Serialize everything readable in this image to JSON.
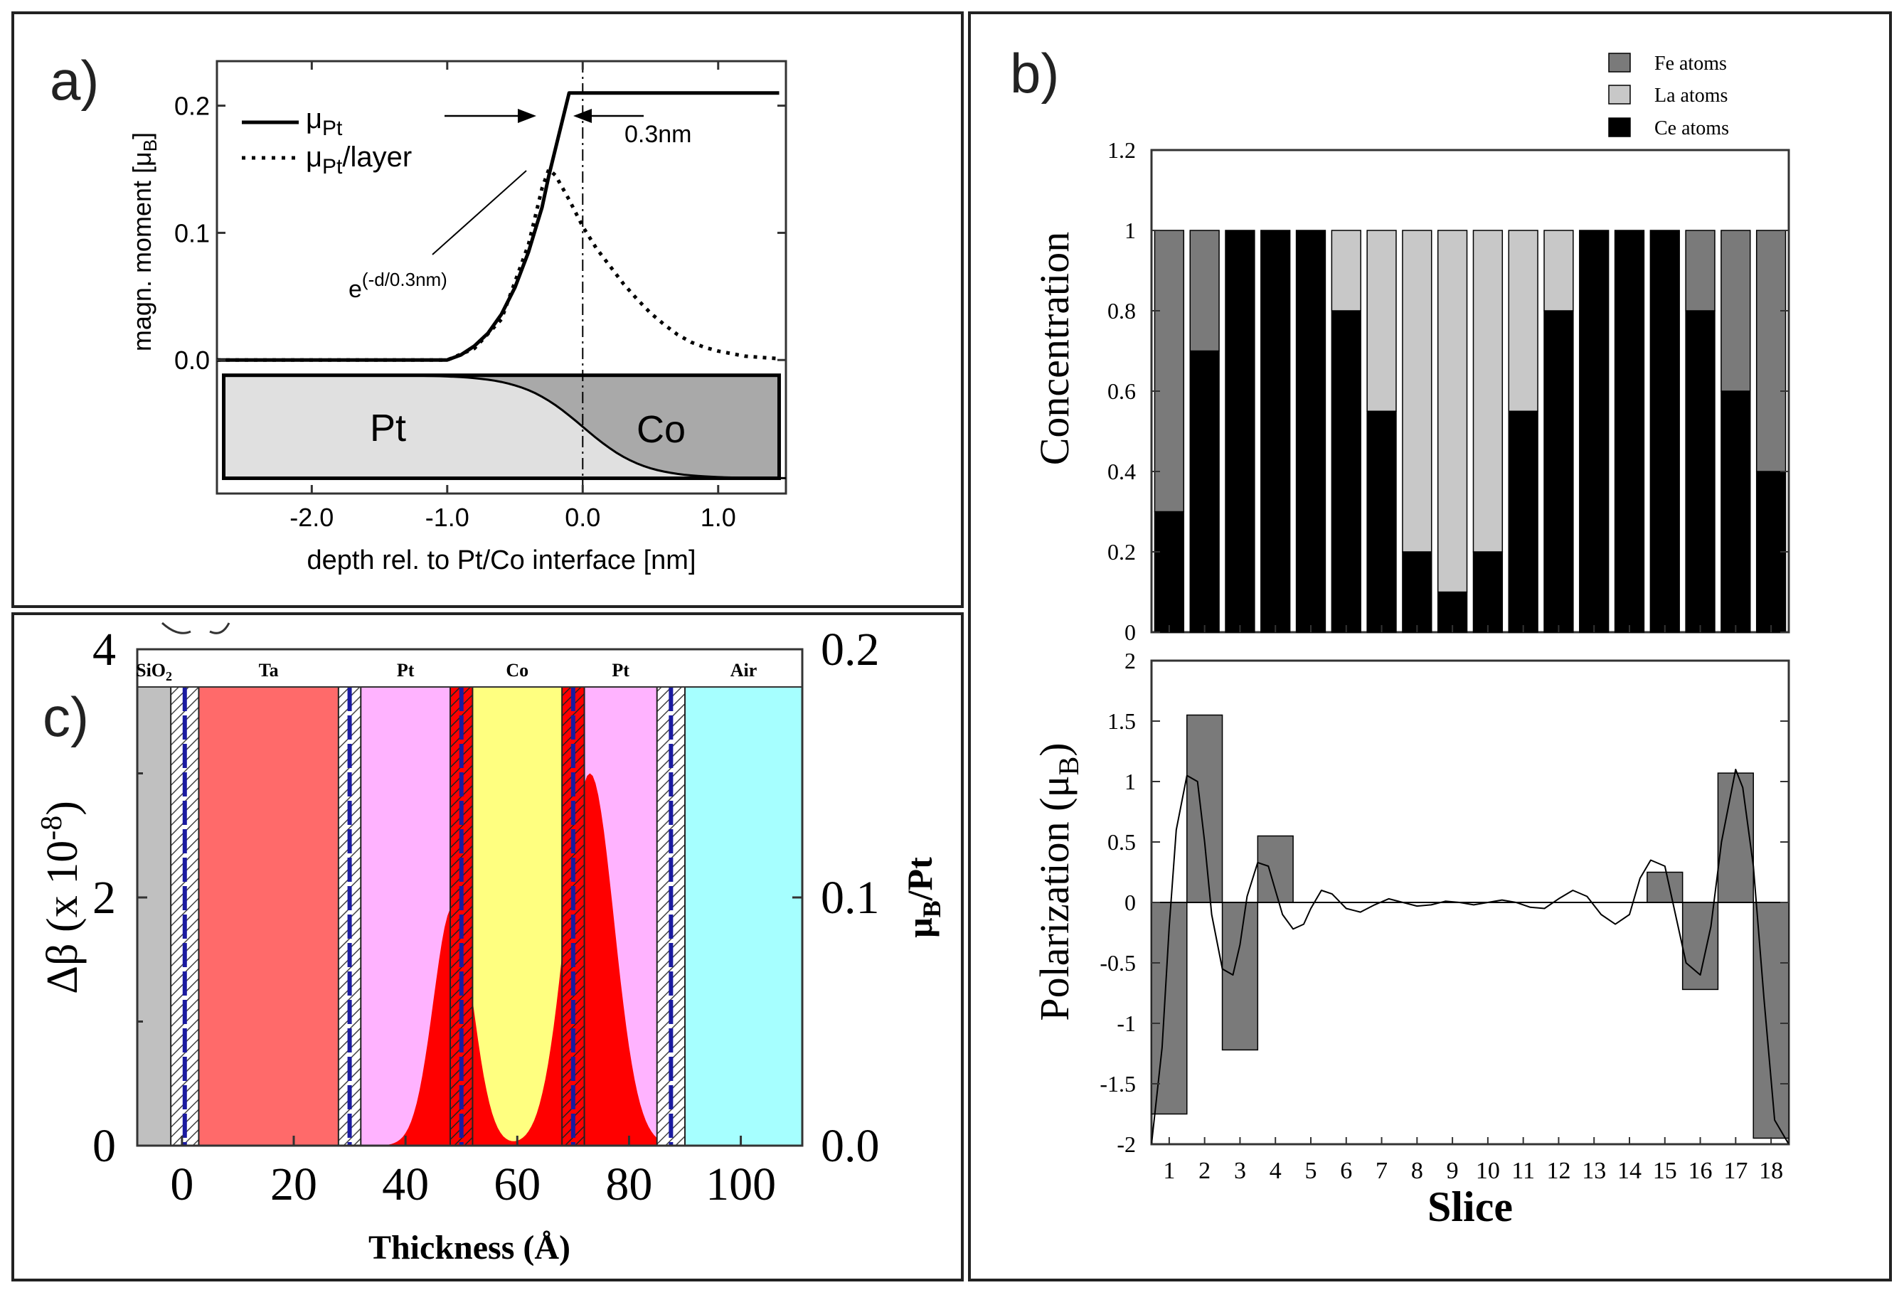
{
  "panels": {
    "a": {
      "label": "a)"
    },
    "b": {
      "label": "b)"
    },
    "c": {
      "label": "c)"
    }
  },
  "colors": {
    "fe": "#7a7a7a",
    "la": "#c8c8c8",
    "ce": "#000000",
    "pt_region": "#e0e0e0",
    "co_region": "#a9a9a9",
    "sio2": "#c0c0c0",
    "ta": "#ff6a6a",
    "pt": "#ffb3ff",
    "co": "#ffff80",
    "air": "#a6ffff",
    "dbeta_fill": "#ff0000",
    "hatch": "#1a1aa0"
  },
  "chart_data": [
    {
      "id": "a",
      "type": "line",
      "xlabel": "depth rel. to Pt/Co interface [nm]",
      "ylabel": "magn. moment [μB]",
      "ylabel_main": "magn. moment [μ",
      "ylabel_sub": "B",
      "ylabel_end": "]",
      "xlim": [
        -2.7,
        1.5
      ],
      "ylim": [
        -0.105,
        0.235
      ],
      "xticks": [
        "-2.0",
        "-1.0",
        "0.0",
        "1.0"
      ],
      "yticks": [
        "0.0",
        "0.1",
        "0.2"
      ],
      "legend": [
        {
          "main": "μ",
          "sub": "Pt",
          "rest": "",
          "style": "solid"
        },
        {
          "main": "μ",
          "sub": "Pt",
          "rest": "/layer",
          "style": "dotted"
        }
      ],
      "annotation_width": "0.3nm",
      "annotation_exp_base": "e",
      "annotation_exp_power": "(-d/0.3nm)",
      "series": [
        {
          "name": "μPt",
          "x": [
            -2.7,
            -1.2,
            -1.0,
            -0.9,
            -0.8,
            -0.7,
            -0.6,
            -0.5,
            -0.4,
            -0.3,
            -0.25,
            -0.1,
            0.2,
            0.5,
            1.0,
            1.45
          ],
          "values": [
            0.0,
            0.0,
            0.0,
            0.004,
            0.011,
            0.021,
            0.036,
            0.057,
            0.085,
            0.12,
            0.145,
            0.21,
            0.21,
            0.21,
            0.21,
            0.21
          ]
        },
        {
          "name": "μPt/layer",
          "x": [
            -2.7,
            -1.2,
            -1.0,
            -0.8,
            -0.6,
            -0.4,
            -0.3,
            -0.25,
            -0.2,
            -0.1,
            0.0,
            0.1,
            0.2,
            0.3,
            0.4,
            0.5,
            0.6,
            0.7,
            0.8,
            0.9,
            1.0,
            1.2,
            1.45
          ],
          "values": [
            0.0,
            0.0,
            0.0,
            0.009,
            0.032,
            0.091,
            0.135,
            0.15,
            0.145,
            0.126,
            0.105,
            0.088,
            0.074,
            0.06,
            0.048,
            0.037,
            0.028,
            0.02,
            0.014,
            0.01,
            0.007,
            0.003,
            0.001
          ]
        }
      ],
      "regions": [
        "Pt",
        "Co"
      ]
    },
    {
      "id": "b_top",
      "type": "bar",
      "stacked": true,
      "ylabel": "Concentration",
      "ylim": [
        0,
        1.2
      ],
      "yticks": [
        "0",
        "0.2",
        "0.4",
        "0.6",
        "0.8",
        "1",
        "1.2"
      ],
      "categories": [
        "1",
        "2",
        "3",
        "4",
        "5",
        "6",
        "7",
        "8",
        "9",
        "10",
        "11",
        "12",
        "13",
        "14",
        "15",
        "16",
        "17",
        "18"
      ],
      "legend": [
        "Fe atoms",
        "La atoms",
        "Ce atoms"
      ],
      "series": [
        {
          "name": "Ce atoms",
          "values": [
            0.3,
            0.7,
            1,
            1,
            1,
            0.8,
            0.55,
            0.2,
            0.1,
            0.2,
            0.55,
            0.8,
            1,
            1,
            1,
            0.8,
            0.6,
            0.4
          ]
        },
        {
          "name": "La atoms",
          "values": [
            0,
            0,
            0,
            0,
            0,
            0.2,
            0.45,
            0.8,
            0.9,
            0.8,
            0.45,
            0.2,
            0,
            0,
            0,
            0,
            0,
            0
          ]
        },
        {
          "name": "Fe atoms",
          "values": [
            0.7,
            0.3,
            0,
            0,
            0,
            0,
            0,
            0,
            0,
            0,
            0,
            0,
            0,
            0,
            0,
            0.2,
            0.4,
            0.6
          ]
        }
      ]
    },
    {
      "id": "b_bottom",
      "type": "bar",
      "ylabel": "Polarization (μB)",
      "ylabel_main": "Polarization (μ",
      "ylabel_sub": "B",
      "ylabel_end": ")",
      "xlabel": "Slice",
      "ylim": [
        -2,
        2
      ],
      "yticks": [
        "-2",
        "-1.5",
        "-1",
        "-0.5",
        "0",
        "0.5",
        "1",
        "1.5",
        "2"
      ],
      "categories": [
        "1",
        "2",
        "3",
        "4",
        "5",
        "6",
        "7",
        "8",
        "9",
        "10",
        "11",
        "12",
        "13",
        "14",
        "15",
        "16",
        "17",
        "18"
      ],
      "values": [
        -1.75,
        1.55,
        -1.22,
        0.55,
        0,
        0,
        0,
        0,
        0,
        0,
        0,
        0,
        0,
        0,
        0.25,
        -0.72,
        1.07,
        -1.95
      ],
      "curve": {
        "x": [
          0.5,
          0.8,
          1.0,
          1.2,
          1.5,
          1.8,
          2.0,
          2.2,
          2.5,
          2.8,
          3.0,
          3.2,
          3.5,
          3.8,
          4.0,
          4.2,
          4.5,
          4.8,
          5.0,
          5.3,
          5.6,
          6.0,
          6.4,
          6.8,
          7.2,
          7.6,
          8.0,
          8.4,
          8.8,
          9.2,
          9.6,
          10.0,
          10.4,
          10.8,
          11.2,
          11.6,
          12.0,
          12.4,
          12.8,
          13.2,
          13.6,
          14.0,
          14.3,
          14.6,
          15.0,
          15.3,
          15.6,
          16.0,
          16.3,
          16.6,
          17.0,
          17.2,
          17.5,
          17.8,
          18.1,
          18.5
        ],
        "values": [
          -2.0,
          -1.2,
          -0.2,
          0.6,
          1.05,
          1.0,
          0.5,
          -0.1,
          -0.55,
          -0.6,
          -0.35,
          0.05,
          0.33,
          0.3,
          0.1,
          -0.1,
          -0.22,
          -0.18,
          -0.05,
          0.1,
          0.07,
          -0.05,
          -0.08,
          -0.02,
          0.03,
          0.0,
          -0.03,
          -0.02,
          0.01,
          0.0,
          -0.02,
          0.0,
          0.02,
          0.0,
          -0.04,
          -0.05,
          0.03,
          0.1,
          0.05,
          -0.1,
          -0.18,
          -0.1,
          0.2,
          0.35,
          0.3,
          -0.1,
          -0.5,
          -0.6,
          -0.2,
          0.5,
          1.1,
          0.95,
          0.3,
          -0.8,
          -1.8,
          -2.0
        ]
      }
    },
    {
      "id": "c",
      "type": "area",
      "xlabel": "Thickness (Å)",
      "ylabel": "Δβ (x 10^-8)",
      "ylabel_main": "Δβ (x 10",
      "ylabel_sup": "-8",
      "ylabel_end": ")",
      "y2label": "μB/Pt",
      "y2label_main": "μ",
      "y2label_sub": "B",
      "y2label_end": "/Pt",
      "xlim": [
        -8,
        111
      ],
      "ylim": [
        0,
        4
      ],
      "y2lim": [
        0,
        0.2
      ],
      "xticks": [
        "0",
        "20",
        "40",
        "60",
        "80",
        "100"
      ],
      "yticks": [
        "0",
        "2",
        "4"
      ],
      "y2ticks": [
        "0.0",
        "0.1",
        "0.2"
      ],
      "layers": [
        {
          "name": "SiO2",
          "main": "SiO",
          "sub": "2",
          "from": -8,
          "to": -2
        },
        {
          "name": "Ta",
          "main": "Ta",
          "sub": "",
          "from": 3,
          "to": 28
        },
        {
          "name": "Pt",
          "main": "Pt",
          "sub": "",
          "from": 32,
          "to": 48
        },
        {
          "name": "Co",
          "main": "Co",
          "sub": "",
          "from": 52,
          "to": 68
        },
        {
          "name": "Pt",
          "main": "Pt",
          "sub": "",
          "from": 72,
          "to": 85
        },
        {
          "name": "Air",
          "main": "Air",
          "sub": "",
          "from": 90,
          "to": 111
        }
      ],
      "interfaces": [
        {
          "from": -2,
          "to": 3
        },
        {
          "from": 28,
          "to": 32
        },
        {
          "from": 48,
          "to": 52
        },
        {
          "from": 68,
          "to": 72
        },
        {
          "from": 85,
          "to": 90
        }
      ],
      "series": [
        {
          "name": "Δβ",
          "gaussians": [
            {
              "center": 48.5,
              "height": 1.93,
              "sigma": 3.5
            },
            {
              "center": 73,
              "height": 3.0,
              "sigma": 4.3
            }
          ]
        }
      ]
    }
  ]
}
